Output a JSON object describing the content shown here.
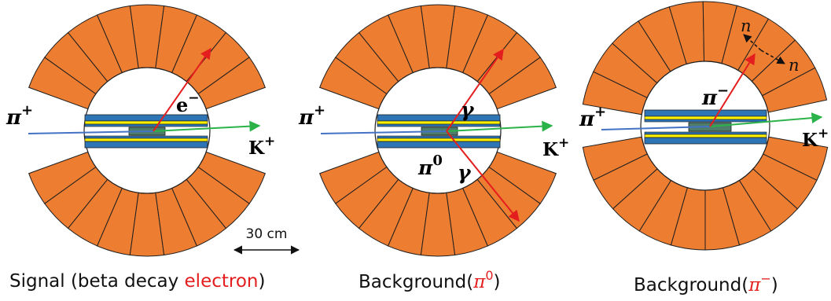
{
  "colors": {
    "calorimeter": "#ED7D31",
    "outline": "#1f1f1f",
    "layer_blue": "#2E75B6",
    "layer_yellow": "#FFF200",
    "target": "#4E7D6C",
    "beam": "#4472C4",
    "kaon": "#2BB34A",
    "decay": "#E41E1E",
    "highlight": "#E41E1E"
  },
  "panels": [
    {
      "name": "signal",
      "beam_label": "π",
      "beam_charge": "+",
      "kaon_label": "K",
      "kaon_charge": "+",
      "track_label": "e",
      "track_charge": "−",
      "caption_prefix": "Signal (beta decay ",
      "caption_highlight": "electron",
      "caption_suffix": ")"
    },
    {
      "name": "pi0-background",
      "beam_label": "π",
      "beam_charge": "+",
      "kaon_label": "K",
      "kaon_charge": "+",
      "gamma_top_label": "γ",
      "pi0_label": "π",
      "pi0_charge": "0",
      "gamma_bottom_label": "γ",
      "caption_prefix": "Background(",
      "caption_highlight_base": "π",
      "caption_highlight_sup": "0",
      "caption_suffix": ")"
    },
    {
      "name": "pi-minus-background",
      "beam_label": "π",
      "beam_charge": "+",
      "kaon_label": "K",
      "kaon_charge": "+",
      "track_label": "π",
      "track_charge": "−",
      "neutron_label_1": "n",
      "neutron_label_2": "n",
      "caption_prefix": "Background(",
      "caption_highlight_base": "π",
      "caption_highlight_sup": "−",
      "caption_suffix": ")"
    }
  ],
  "scale_bar": {
    "label": "30 cm"
  }
}
